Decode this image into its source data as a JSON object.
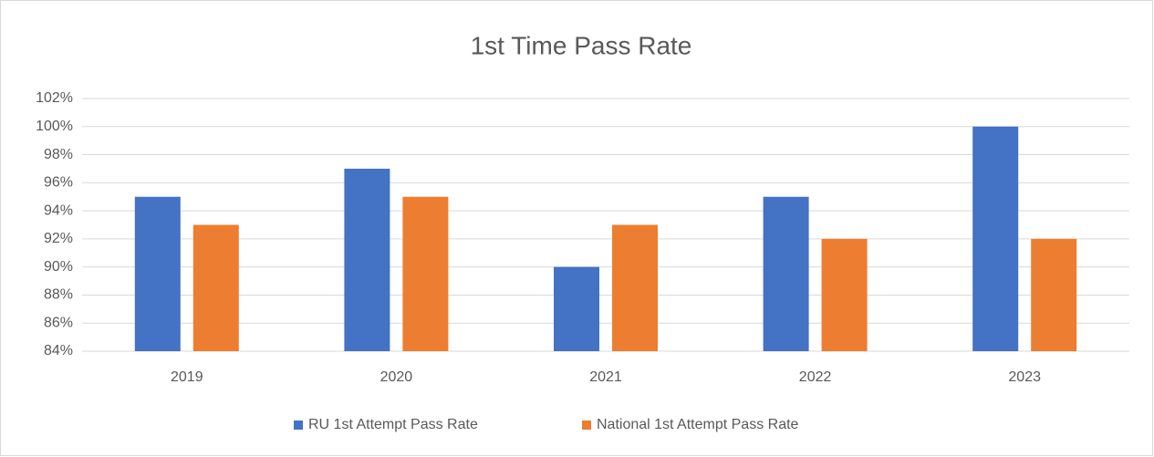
{
  "chart_data": {
    "type": "bar",
    "title": "1st Time Pass Rate",
    "categories": [
      "2019",
      "2020",
      "2021",
      "2022",
      "2023"
    ],
    "series": [
      {
        "name": "RU 1st Attempt Pass Rate",
        "color": "#4472c4",
        "values": [
          95,
          97,
          90,
          95,
          100
        ]
      },
      {
        "name": "National 1st Attempt Pass Rate",
        "color": "#ed7d31",
        "values": [
          93,
          95,
          93,
          92,
          92
        ]
      }
    ],
    "ylim": [
      84,
      102
    ],
    "yticks": [
      {
        "value": 84,
        "label": "84%"
      },
      {
        "value": 86,
        "label": "86%"
      },
      {
        "value": 88,
        "label": "88%"
      },
      {
        "value": 90,
        "label": "90%"
      },
      {
        "value": 92,
        "label": "92%"
      },
      {
        "value": 94,
        "label": "94%"
      },
      {
        "value": 96,
        "label": "96%"
      },
      {
        "value": 98,
        "label": "98%"
      },
      {
        "value": 100,
        "label": "100%"
      },
      {
        "value": 102,
        "label": "102%"
      }
    ],
    "grid": true,
    "legend": "bottom"
  }
}
